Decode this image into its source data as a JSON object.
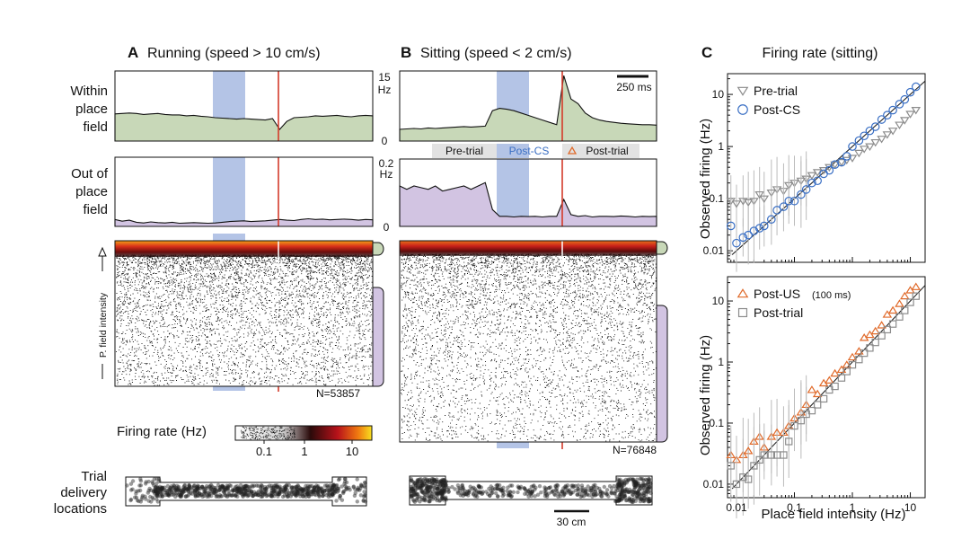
{
  "panel_a": {
    "letter": "A",
    "title": "Running (speed > 10 cm/s)",
    "n_label": "N=53857"
  },
  "panel_b": {
    "letter": "B",
    "title": "Sitting (speed < 2 cm/s)",
    "scale_ms": "250 ms",
    "n_label": "N=76848",
    "epochs": [
      "Pre-trial",
      "Post-CS",
      "Post-trial"
    ]
  },
  "panel_c": {
    "letter": "C",
    "title": "Firing rate (sitting)",
    "ylabel": "Observed firing (Hz)",
    "xlabel": "Place field intensity (Hz)"
  },
  "rows": {
    "within": [
      "Within",
      "place",
      "field"
    ],
    "out": [
      "Out of",
      "place",
      "field"
    ],
    "raster_label": "P. field intensity"
  },
  "axes": {
    "within_top": "15",
    "within_unit": "Hz",
    "within_bottom": "0",
    "out_top": "0.2",
    "out_unit": "Hz",
    "out_bottom": "0"
  },
  "colorbar": {
    "label": "Firing rate (Hz)",
    "ticks": [
      "0.1",
      "1",
      "10"
    ]
  },
  "track": {
    "label": [
      "Trial",
      "delivery",
      "locations"
    ],
    "scale": "30 cm"
  },
  "colors": {
    "within_fill": "#c8d8b8",
    "out_fill": "#d2c4e2",
    "cs_band": "#b4c4e6",
    "us_line": "#d43a2a",
    "pre_color": "#8c8c8c",
    "postcs_color": "#3a6fc4",
    "postus_color": "#e06a2a",
    "posttrial_color": "#8c8c8c",
    "label_blue": "#3a6fc4"
  },
  "chart_data": [
    {
      "type": "line",
      "title": "Running (speed > 10 cm/s)",
      "ylabel": "Within place field",
      "ylim": [
        0,
        15
      ],
      "y_unit": "Hz",
      "description_points": [
        5.8,
        5.9,
        6.0,
        5.9,
        5.7,
        5.8,
        5.9,
        5.7,
        5.6,
        5.6,
        5.4,
        5.5,
        5.3,
        5.2,
        5.0,
        4.9,
        4.8,
        4.7,
        4.8,
        4.7,
        4.6,
        4.5,
        4.8,
        2.5,
        4.2,
        5.0,
        5.1,
        5.2,
        5.4,
        5.3,
        5.4,
        5.5,
        5.3,
        5.2,
        5.4,
        5.5,
        5.4
      ]
    },
    {
      "type": "line",
      "title": "Running (speed > 10 cm/s)",
      "ylabel": "Out of place field",
      "ylim": [
        0,
        0.2
      ],
      "y_unit": "Hz",
      "description_points": [
        0.02,
        0.015,
        0.018,
        0.012,
        0.01,
        0.013,
        0.011,
        0.01,
        0.012,
        0.009,
        0.01,
        0.011,
        0.01,
        0.009,
        0.01,
        0.012,
        0.014,
        0.015,
        0.016,
        0.014,
        0.015,
        0.016,
        0.018,
        0.02,
        0.018,
        0.017,
        0.02,
        0.022,
        0.02,
        0.021,
        0.019,
        0.02,
        0.021,
        0.02,
        0.018,
        0.02,
        0.019
      ]
    },
    {
      "type": "line",
      "title": "Sitting (speed < 2 cm/s)",
      "ylabel": "Within place field",
      "ylim": [
        0,
        15
      ],
      "y_unit": "Hz",
      "description_points": [
        2.5,
        2.6,
        2.7,
        2.6,
        2.8,
        2.7,
        2.8,
        2.9,
        3.0,
        3.1,
        3.0,
        3.1,
        3.2,
        6.5,
        7.0,
        6.8,
        6.5,
        6.0,
        5.5,
        5.0,
        4.5,
        4.0,
        3.5,
        14.0,
        9.0,
        8.0,
        6.0,
        5.0,
        4.5,
        4.2,
        4.0,
        3.8,
        3.7,
        3.6,
        3.5,
        3.5,
        3.4
      ]
    },
    {
      "type": "line",
      "title": "Sitting (speed < 2 cm/s)",
      "ylabel": "Out of place field",
      "ylim": [
        0,
        0.2
      ],
      "y_unit": "Hz",
      "description_points": [
        0.12,
        0.11,
        0.12,
        0.115,
        0.11,
        0.12,
        0.105,
        0.11,
        0.115,
        0.12,
        0.11,
        0.12,
        0.13,
        0.05,
        0.03,
        0.03,
        0.028,
        0.03,
        0.029,
        0.03,
        0.028,
        0.03,
        0.03,
        0.08,
        0.035,
        0.03,
        0.032,
        0.028,
        0.03,
        0.03,
        0.029,
        0.031,
        0.03,
        0.028,
        0.03,
        0.029,
        0.03
      ]
    },
    {
      "type": "scatter",
      "title": "Firing rate (sitting)",
      "xlabel": "Place field intensity (Hz)",
      "ylabel": "Observed firing (Hz)",
      "xscale": "log",
      "yscale": "log",
      "xlim": [
        0.007,
        18
      ],
      "ylim": [
        0.006,
        25
      ],
      "legend_position": "top-left",
      "series": [
        {
          "name": "Pre-trial",
          "marker": "triangle-down",
          "x": [
            0.008,
            0.01,
            0.013,
            0.016,
            0.02,
            0.025,
            0.03,
            0.04,
            0.05,
            0.065,
            0.08,
            0.1,
            0.13,
            0.16,
            0.2,
            0.25,
            0.32,
            0.4,
            0.5,
            0.65,
            0.8,
            1.0,
            1.3,
            1.6,
            2.0,
            2.5,
            3.2,
            4.0,
            5.0,
            6.5,
            8.0,
            10,
            12.5
          ],
          "y": [
            0.09,
            0.08,
            0.09,
            0.085,
            0.09,
            0.12,
            0.1,
            0.13,
            0.15,
            0.14,
            0.18,
            0.2,
            0.22,
            0.24,
            0.28,
            0.32,
            0.35,
            0.4,
            0.45,
            0.5,
            0.55,
            0.6,
            0.75,
            0.9,
            1.0,
            1.2,
            1.4,
            1.7,
            2.0,
            2.6,
            3.2,
            4.2,
            5.0
          ]
        },
        {
          "name": "Post-CS",
          "marker": "circle",
          "x": [
            0.008,
            0.01,
            0.013,
            0.016,
            0.02,
            0.025,
            0.03,
            0.04,
            0.05,
            0.065,
            0.08,
            0.1,
            0.13,
            0.16,
            0.2,
            0.25,
            0.32,
            0.4,
            0.5,
            0.65,
            0.8,
            1.0,
            1.3,
            1.6,
            2.0,
            2.5,
            3.2,
            4.0,
            5.0,
            6.5,
            8.0,
            10,
            12.5
          ],
          "y": [
            0.03,
            0.014,
            0.018,
            0.02,
            0.024,
            0.027,
            0.03,
            0.04,
            0.06,
            0.07,
            0.09,
            0.09,
            0.12,
            0.15,
            0.2,
            0.22,
            0.3,
            0.35,
            0.45,
            0.5,
            0.65,
            1.0,
            1.3,
            1.6,
            2.0,
            2.4,
            3.3,
            4.0,
            5.0,
            6.5,
            8.0,
            11,
            14
          ]
        }
      ]
    },
    {
      "type": "scatter",
      "title": "",
      "xlabel": "Place field intensity (Hz)",
      "ylabel": "Observed firing (Hz)",
      "xscale": "log",
      "yscale": "log",
      "xlim": [
        0.007,
        18
      ],
      "ylim": [
        0.006,
        25
      ],
      "legend_position": "top-left",
      "series": [
        {
          "name": "Post-US",
          "note": "(100 ms)",
          "marker": "triangle-up",
          "x": [
            0.008,
            0.01,
            0.013,
            0.016,
            0.02,
            0.025,
            0.03,
            0.04,
            0.05,
            0.065,
            0.08,
            0.1,
            0.13,
            0.16,
            0.2,
            0.25,
            0.32,
            0.4,
            0.5,
            0.65,
            0.8,
            1.0,
            1.3,
            1.6,
            2.0,
            2.5,
            3.2,
            4.0,
            5.0,
            6.5,
            8.0,
            10,
            12.5
          ],
          "y": [
            0.03,
            0.025,
            0.03,
            0.035,
            0.05,
            0.06,
            0.04,
            0.06,
            0.07,
            0.07,
            0.09,
            0.12,
            0.15,
            0.2,
            0.35,
            0.3,
            0.45,
            0.5,
            0.65,
            0.75,
            0.9,
            1.2,
            1.5,
            2.5,
            2.8,
            3.2,
            4.0,
            6.0,
            7.0,
            9.0,
            12,
            15,
            17
          ]
        },
        {
          "name": "Post-trial",
          "marker": "square",
          "x": [
            0.008,
            0.01,
            0.013,
            0.016,
            0.02,
            0.025,
            0.03,
            0.04,
            0.05,
            0.065,
            0.08,
            0.1,
            0.13,
            0.16,
            0.2,
            0.25,
            0.32,
            0.4,
            0.5,
            0.65,
            0.8,
            1.0,
            1.3,
            1.6,
            2.0,
            2.5,
            3.2,
            4.0,
            5.0,
            6.5,
            8.0,
            10,
            12.5
          ],
          "y": [
            0.02,
            0.01,
            0.013,
            0.012,
            0.02,
            0.025,
            0.03,
            0.03,
            0.03,
            0.03,
            0.05,
            0.09,
            0.11,
            0.14,
            0.16,
            0.2,
            0.25,
            0.35,
            0.4,
            0.55,
            0.7,
            0.9,
            1.1,
            1.4,
            1.7,
            2.1,
            2.7,
            3.4,
            4.2,
            5.5,
            7.0,
            9.5,
            12
          ]
        }
      ]
    }
  ]
}
